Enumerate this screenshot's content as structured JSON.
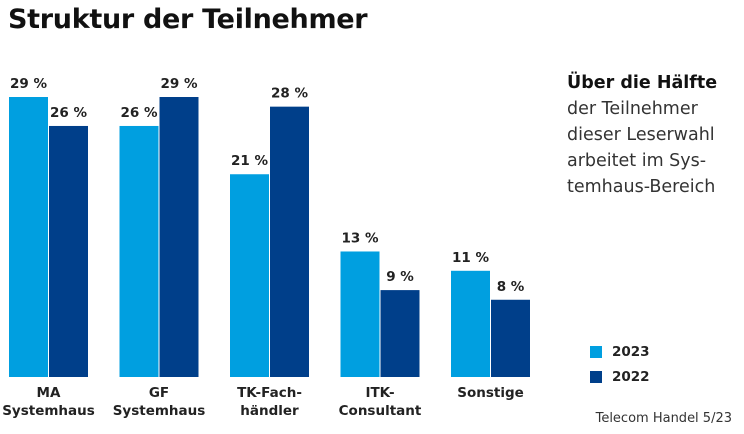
{
  "chart_data": {
    "type": "bar",
    "title": "Struktur der Teilnehmer",
    "categories": [
      [
        "MA",
        "Systemhaus"
      ],
      [
        "GF",
        "Systemhaus"
      ],
      [
        "TK-Fach-",
        "händler"
      ],
      [
        "ITK-",
        "Consultant"
      ],
      [
        "Sonstige"
      ]
    ],
    "series": [
      {
        "name": "2023",
        "values": [
          29,
          26,
          21,
          13,
          11
        ],
        "labels": [
          "29 %",
          "26 %",
          "21 %",
          "13 %",
          "11 %"
        ],
        "color": "#009fe0"
      },
      {
        "name": "2022",
        "values": [
          26,
          29,
          28,
          9,
          8
        ],
        "labels": [
          "26 %",
          "29 %",
          "28 %",
          "9 %",
          "8 %"
        ],
        "color": "#003f8a"
      }
    ],
    "ylim": [
      0,
      29
    ],
    "unit": "%",
    "legend_position": "bottom-right",
    "grid": false
  },
  "note": {
    "heading": "Über die Hälfte",
    "lines": [
      "der Teilnehmer",
      "dieser Leserwahl",
      "arbeitet im Sys-",
      "temhaus-Bereich"
    ]
  },
  "source": "Telecom Handel 5/23"
}
